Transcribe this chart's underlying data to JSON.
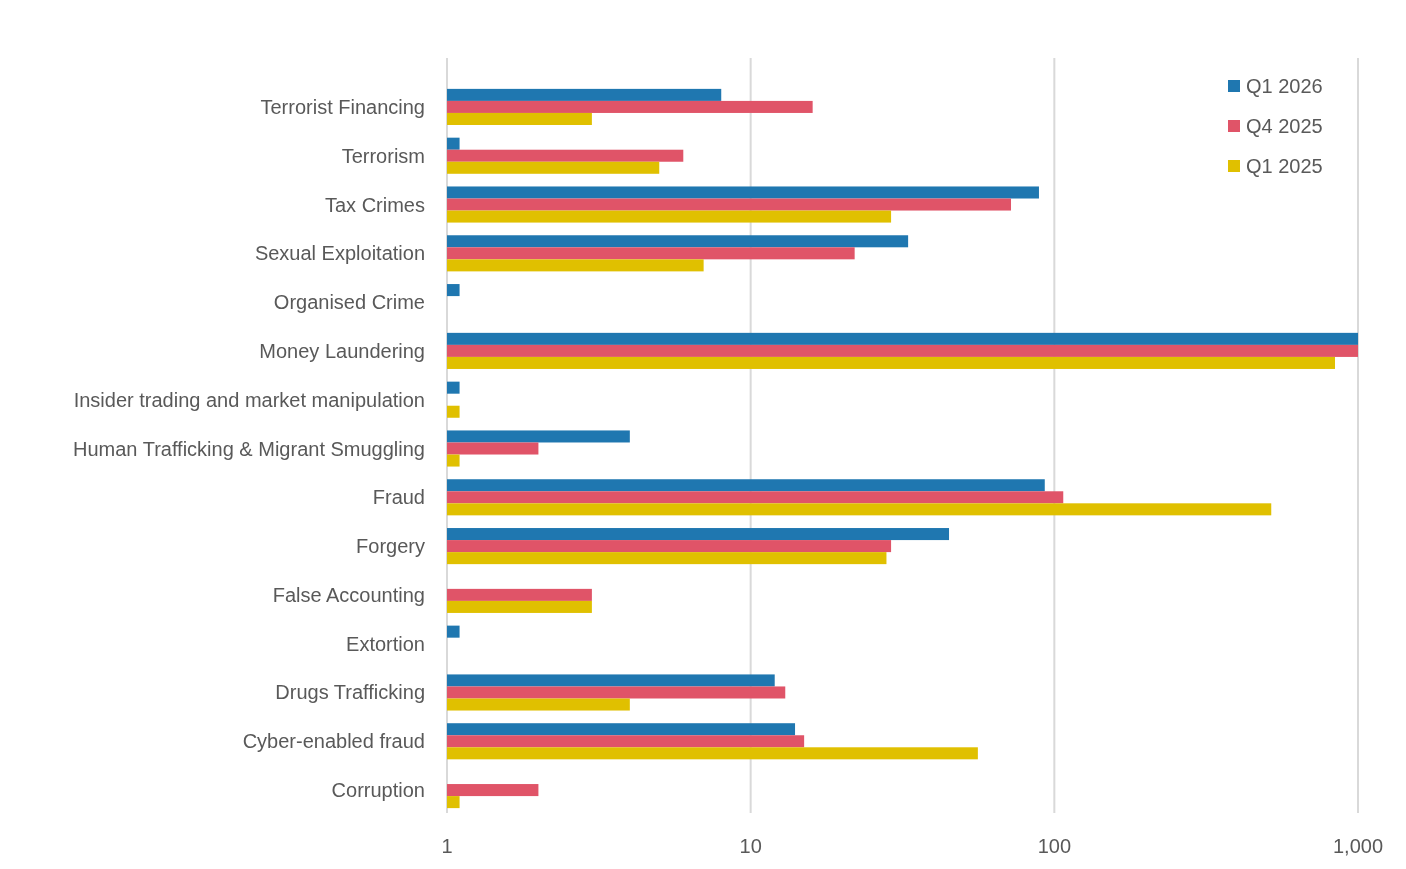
{
  "chart_data": {
    "type": "bar",
    "orientation": "horizontal",
    "log": "x",
    "grid": "x",
    "legend": "top right",
    "categories": [
      "Terrorist Financing",
      "Terrorism",
      "Tax Crimes",
      "Sexual Exploitation",
      "Organised Crime",
      "Money Laundering",
      "Insider trading and market manipulation",
      "Human Trafficking & Migrant Smuggling",
      "Fraud",
      "Forgery",
      "False Accounting",
      "Extortion",
      "Drugs Trafficking",
      "Cyber-enabled fraud",
      "Corruption"
    ],
    "series": [
      {
        "name": "Q1 2026",
        "color": "#1f77b0",
        "values": [
          8,
          1.1,
          89,
          33,
          1.1,
          1000,
          1.1,
          4,
          93,
          45,
          null,
          1.1,
          12,
          14,
          null
        ]
      },
      {
        "name": "Q4 2025",
        "color": "#e05468",
        "values": [
          16,
          6,
          72,
          22,
          null,
          1000,
          null,
          2,
          107,
          29,
          3,
          null,
          13,
          15,
          2
        ]
      },
      {
        "name": "Q1 2025",
        "color": "#e0c000",
        "values": [
          3,
          5,
          29,
          7,
          null,
          840,
          1.1,
          1.1,
          518,
          28,
          3,
          null,
          4,
          56,
          1.1
        ]
      }
    ],
    "xlim": [
      1,
      1000
    ],
    "xticks": [
      1,
      10,
      100,
      {
        "value": 1000,
        "label": "1,000"
      }
    ]
  }
}
